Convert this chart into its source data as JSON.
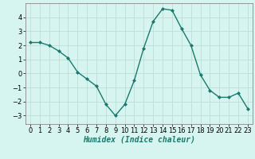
{
  "x": [
    0,
    1,
    2,
    3,
    4,
    5,
    6,
    7,
    8,
    9,
    10,
    11,
    12,
    13,
    14,
    15,
    16,
    17,
    18,
    19,
    20,
    21,
    22,
    23
  ],
  "y": [
    2.2,
    2.2,
    2.0,
    1.6,
    1.1,
    0.1,
    -0.4,
    -0.9,
    -2.2,
    -3.0,
    -2.2,
    -0.5,
    1.8,
    3.7,
    4.6,
    4.5,
    3.2,
    2.0,
    -0.1,
    -1.2,
    -1.7,
    -1.7,
    -1.4,
    -2.5
  ],
  "line_color": "#1a7a6e",
  "marker": "D",
  "marker_size": 2,
  "bg_color": "#d6f5f0",
  "grid_color": "#c0ddd8",
  "xlabel": "Humidex (Indice chaleur)",
  "xlabel_fontsize": 7,
  "tick_fontsize": 6,
  "xlim": [
    -0.5,
    23.5
  ],
  "ylim": [
    -3.6,
    5.0
  ],
  "yticks": [
    -3,
    -2,
    -1,
    0,
    1,
    2,
    3,
    4
  ],
  "xticks": [
    0,
    1,
    2,
    3,
    4,
    5,
    6,
    7,
    8,
    9,
    10,
    11,
    12,
    13,
    14,
    15,
    16,
    17,
    18,
    19,
    20,
    21,
    22,
    23
  ]
}
